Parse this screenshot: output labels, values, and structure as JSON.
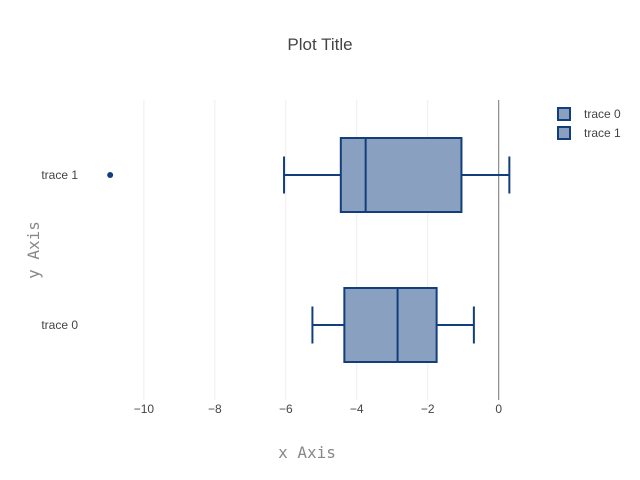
{
  "chart_data": {
    "type": "box",
    "orientation": "horizontal",
    "title": "Plot Title",
    "xlabel": "x Axis",
    "ylabel": "y Axis",
    "xlim": [
      -11.8,
      0.6
    ],
    "xticks": [
      -10,
      -8,
      -6,
      -4,
      -2,
      0
    ],
    "xtick_labels": [
      "−10",
      "−8",
      "−6",
      "−4",
      "−2",
      "0"
    ],
    "grid": true,
    "zero_line": true,
    "legend_position": "top-right",
    "categories": [
      "trace 0",
      "trace 1"
    ],
    "series": [
      {
        "name": "trace 0",
        "lower_whisker": -5.25,
        "q1": -4.35,
        "median": -2.85,
        "q3": -1.75,
        "upper_whisker": -0.7,
        "outliers": []
      },
      {
        "name": "trace 1",
        "lower_whisker": -6.05,
        "q1": -4.45,
        "median": -3.75,
        "q3": -1.05,
        "upper_whisker": 0.3,
        "outliers": [
          -10.95
        ]
      }
    ],
    "colors": {
      "fill": "#8aa0c1",
      "line": "#133e7c",
      "axis_text": "#444444",
      "title_text": "#444444",
      "label_text": "#888888",
      "grid": "#eeeeee",
      "zero_line": "#444444"
    }
  }
}
